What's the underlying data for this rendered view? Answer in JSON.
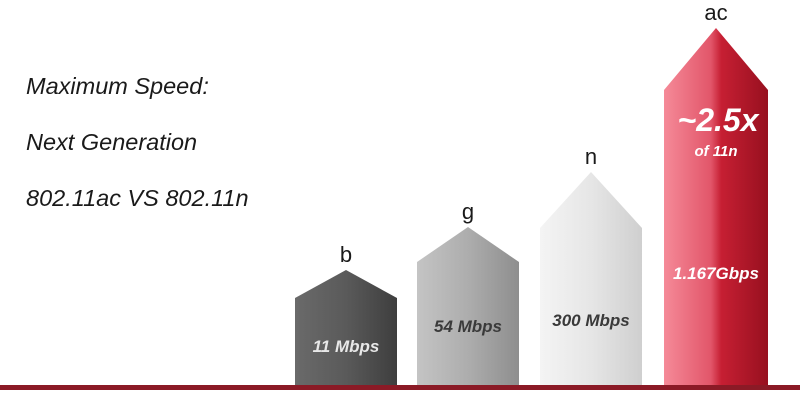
{
  "title_lines": [
    "Maximum  Speed:",
    "Next  Generation",
    "802.11ac VS 802.11n"
  ],
  "chart_data": {
    "type": "bar",
    "title": "Maximum  Speed: Next  Generation 802.11ac VS 802.11n",
    "categories": [
      "b",
      "g",
      "n",
      "ac"
    ],
    "values": [
      11,
      54,
      300,
      1167
    ],
    "value_labels": [
      "11 Mbps",
      "54 Mbps",
      "300 Mbps",
      "1.167Gbps"
    ],
    "unit": "Mbps",
    "colors": {
      "b": "#555555",
      "g": "#a9a9a9",
      "n": "#e4e4e4",
      "ac": "#d42a3c",
      "baseline": "#8b1a26"
    },
    "annotation": {
      "text": "~2.5x",
      "sub": "of 11n",
      "category": "ac"
    }
  }
}
